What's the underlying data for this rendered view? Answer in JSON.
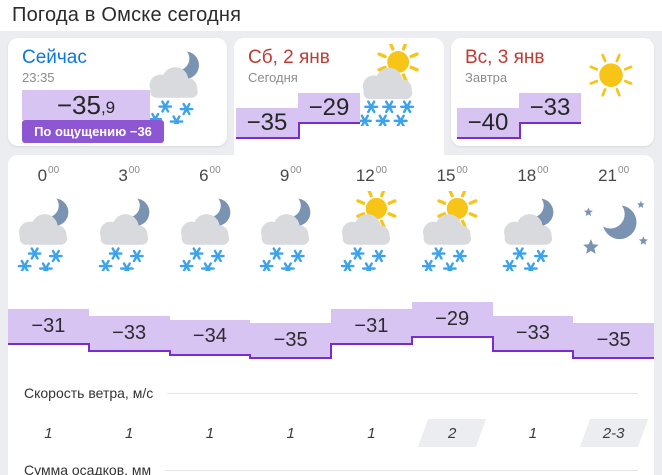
{
  "title": "Погода в Омске сегодня",
  "now_card": {
    "label": "Сейчас",
    "time": "23:35",
    "temp_int": "−35",
    "temp_frac": ",9",
    "feels_label": "По ощущению −36",
    "icon": "moon-cloud-snow"
  },
  "today_card": {
    "date": "Сб, 2 янв",
    "sublabel": "Сегодня",
    "low": "−35",
    "high": "−29",
    "icon": "sun-cloud-snow"
  },
  "tomorrow_card": {
    "date": "Вс, 3 янв",
    "sublabel": "Завтра",
    "low": "−40",
    "high": "−33",
    "icon": "sun"
  },
  "hourly": {
    "hour_sup": "00",
    "hours": [
      "0",
      "3",
      "6",
      "9",
      "12",
      "15",
      "18",
      "21"
    ],
    "icons": [
      "moon-cloud-snow",
      "moon-cloud-snow",
      "moon-cloud-snow",
      "moon-cloud-snow",
      "sun-cloud-snow",
      "sun-cloud-snow",
      "moon-cloud-snow",
      "moon-stars"
    ],
    "temps": [
      -31,
      -33,
      -34,
      -35,
      -31,
      -29,
      -33,
      -35
    ],
    "temp_labels": [
      "−31",
      "−33",
      "−34",
      "−35",
      "−31",
      "−29",
      "−33",
      "−35"
    ]
  },
  "wind": {
    "label": "Скорость ветра, м/с",
    "values": [
      "1",
      "1",
      "1",
      "1",
      "1",
      "2",
      "1",
      "2-3"
    ],
    "highlighted": [
      false,
      false,
      false,
      false,
      false,
      true,
      false,
      true
    ]
  },
  "precip": {
    "label": "Сумма осадков, мм"
  },
  "colors": {
    "accent_blue": "#0d77dd",
    "accent_red": "#bf3b34",
    "purple_fill": "#d8c4f2",
    "purple_border": "#7b2ccd",
    "badge_purple": "#8d57d4",
    "snow_blue": "#3ba3ec",
    "sun_yellow": "#f7c418",
    "moon_slate": "#7b93b2",
    "cloud_gray": "#d8dadd",
    "page_bg": "#ecedf0"
  }
}
